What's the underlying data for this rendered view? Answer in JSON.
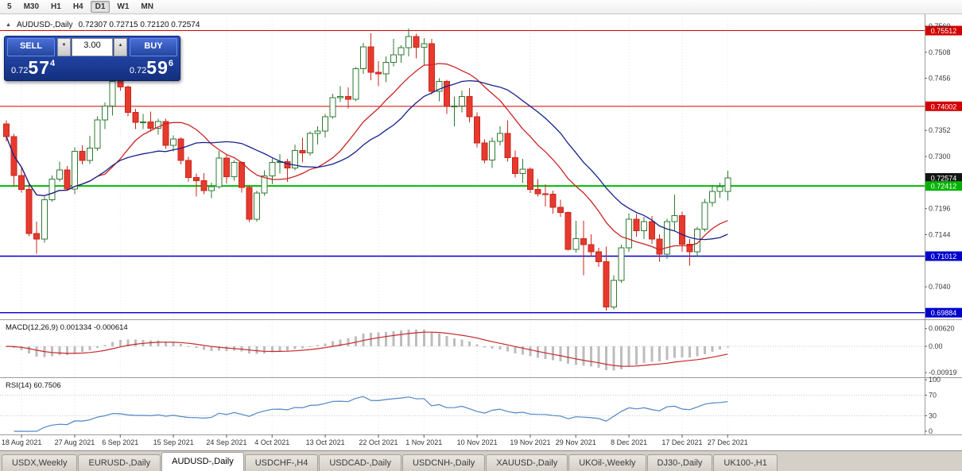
{
  "toolbar": {
    "timeframes": [
      {
        "label": "5",
        "active": false
      },
      {
        "label": "M30",
        "active": false
      },
      {
        "label": "H1",
        "active": false
      },
      {
        "label": "H4",
        "active": false
      },
      {
        "label": "D1",
        "active": true
      },
      {
        "label": "W1",
        "active": false
      },
      {
        "label": "MN",
        "active": false
      }
    ]
  },
  "chart_header": {
    "collapse_icon": "▲",
    "symbol_label": "AUDUSD-,Daily",
    "ohlc_label": "0.72307 0.72715 0.72120 0.72574"
  },
  "trade_panel": {
    "sell_label": "SELL",
    "buy_label": "BUY",
    "volume": "3.00",
    "spin_up": "▲",
    "spin_down": "▼",
    "bid": {
      "prefix": "0.72",
      "big": "57",
      "sup": "4"
    },
    "ask": {
      "prefix": "0.72",
      "big": "59",
      "sup": "6"
    }
  },
  "indicator_labels": {
    "macd": "MACD(12,26,9) 0.001334 -0.000614",
    "rsi": "RSI(14) 60.7506"
  },
  "tabs": [
    {
      "label": "USDX,Weekly",
      "active": false
    },
    {
      "label": "EURUSD-,Daily",
      "active": false
    },
    {
      "label": "AUDUSD-,Daily",
      "active": true
    },
    {
      "label": "USDCHF-,H4",
      "active": false
    },
    {
      "label": "USDCAD-,Daily",
      "active": false
    },
    {
      "label": "USDCNH-,Daily",
      "active": false
    },
    {
      "label": "XAUUSD-,Daily",
      "active": false
    },
    {
      "label": "UKOil-,Weekly",
      "active": false
    },
    {
      "label": "DJ30-,Daily",
      "active": false
    },
    {
      "label": "UK100-,H1",
      "active": false
    }
  ],
  "chart_data": {
    "type": "candlestick",
    "title": "AUDUSD-,Daily",
    "timeframe": "Daily",
    "x_labels": [
      {
        "text": "18 Aug 2021",
        "bar": 2
      },
      {
        "text": "27 Aug 2021",
        "bar": 9
      },
      {
        "text": "6 Sep 2021",
        "bar": 15
      },
      {
        "text": "15 Sep 2021",
        "bar": 22
      },
      {
        "text": "24 Sep 2021",
        "bar": 29
      },
      {
        "text": "4 Oct 2021",
        "bar": 35
      },
      {
        "text": "13 Oct 2021",
        "bar": 42
      },
      {
        "text": "22 Oct 2021",
        "bar": 49
      },
      {
        "text": "1 Nov 2021",
        "bar": 55
      },
      {
        "text": "10 Nov 2021",
        "bar": 62
      },
      {
        "text": "19 Nov 2021",
        "bar": 69
      },
      {
        "text": "29 Nov 2021",
        "bar": 75
      },
      {
        "text": "8 Dec 2021",
        "bar": 82
      },
      {
        "text": "17 Dec 2021",
        "bar": 89
      },
      {
        "text": "27 Dec 2021",
        "bar": 95
      }
    ],
    "candles": [
      [
        0.7365,
        0.7372,
        0.733,
        0.734
      ],
      [
        0.734,
        0.7345,
        0.7241,
        0.7262
      ],
      [
        0.7262,
        0.728,
        0.7228,
        0.7234
      ],
      [
        0.7234,
        0.7245,
        0.7141,
        0.7146
      ],
      [
        0.7146,
        0.717,
        0.7106,
        0.7135
      ],
      [
        0.7135,
        0.722,
        0.7128,
        0.7214
      ],
      [
        0.7214,
        0.7262,
        0.721,
        0.7255
      ],
      [
        0.7255,
        0.729,
        0.725,
        0.7273
      ],
      [
        0.7273,
        0.7281,
        0.7232,
        0.7235
      ],
      [
        0.7235,
        0.7318,
        0.7225,
        0.731
      ],
      [
        0.731,
        0.7322,
        0.7284,
        0.7292
      ],
      [
        0.7292,
        0.7341,
        0.7285,
        0.7317
      ],
      [
        0.7317,
        0.738,
        0.7311,
        0.7373
      ],
      [
        0.7373,
        0.7408,
        0.7355,
        0.7401
      ],
      [
        0.7401,
        0.7453,
        0.7382,
        0.745
      ],
      [
        0.745,
        0.7462,
        0.7432,
        0.7439
      ],
      [
        0.7439,
        0.7442,
        0.738,
        0.7388
      ],
      [
        0.7388,
        0.7395,
        0.7355,
        0.7368
      ],
      [
        0.7368,
        0.7385,
        0.7355,
        0.7369
      ],
      [
        0.7369,
        0.739,
        0.735,
        0.7356
      ],
      [
        0.7356,
        0.7375,
        0.7344,
        0.737
      ],
      [
        0.737,
        0.7375,
        0.7315,
        0.7322
      ],
      [
        0.7322,
        0.7342,
        0.731,
        0.7335
      ],
      [
        0.7335,
        0.7338,
        0.7284,
        0.7292
      ],
      [
        0.7292,
        0.7299,
        0.725,
        0.7258
      ],
      [
        0.7258,
        0.7266,
        0.722,
        0.7252
      ],
      [
        0.7252,
        0.7267,
        0.7225,
        0.7232
      ],
      [
        0.7232,
        0.7248,
        0.7217,
        0.724
      ],
      [
        0.724,
        0.7311,
        0.7236,
        0.7297
      ],
      [
        0.7297,
        0.7305,
        0.7246,
        0.726
      ],
      [
        0.726,
        0.7292,
        0.7252,
        0.7288
      ],
      [
        0.7288,
        0.729,
        0.7228,
        0.7238
      ],
      [
        0.7238,
        0.7242,
        0.7169,
        0.7175
      ],
      [
        0.7175,
        0.7232,
        0.717,
        0.7227
      ],
      [
        0.7227,
        0.7272,
        0.7222,
        0.7261
      ],
      [
        0.7261,
        0.7296,
        0.7245,
        0.7288
      ],
      [
        0.7288,
        0.7305,
        0.7266,
        0.729
      ],
      [
        0.729,
        0.7295,
        0.7249,
        0.7277
      ],
      [
        0.7277,
        0.7324,
        0.7272,
        0.7312
      ],
      [
        0.7312,
        0.7337,
        0.7288,
        0.7307
      ],
      [
        0.7307,
        0.735,
        0.7302,
        0.7346
      ],
      [
        0.7346,
        0.736,
        0.7324,
        0.7351
      ],
      [
        0.7351,
        0.7385,
        0.7338,
        0.7379
      ],
      [
        0.7379,
        0.7425,
        0.7375,
        0.7417
      ],
      [
        0.7417,
        0.744,
        0.7409,
        0.742
      ],
      [
        0.742,
        0.7438,
        0.7396,
        0.7414
      ],
      [
        0.7414,
        0.7478,
        0.741,
        0.7475
      ],
      [
        0.7475,
        0.7527,
        0.7465,
        0.7519
      ],
      [
        0.7519,
        0.7546,
        0.7452,
        0.7468
      ],
      [
        0.7468,
        0.749,
        0.744,
        0.7465
      ],
      [
        0.7465,
        0.75,
        0.7448,
        0.7488
      ],
      [
        0.7488,
        0.7535,
        0.748,
        0.7503
      ],
      [
        0.7503,
        0.7522,
        0.7487,
        0.7517
      ],
      [
        0.7517,
        0.7555,
        0.75,
        0.7539
      ],
      [
        0.7539,
        0.7545,
        0.7496,
        0.7518
      ],
      [
        0.7518,
        0.7536,
        0.7482,
        0.7525
      ],
      [
        0.7525,
        0.7535,
        0.7424,
        0.743
      ],
      [
        0.743,
        0.7456,
        0.741,
        0.745
      ],
      [
        0.745,
        0.7453,
        0.7385,
        0.74
      ],
      [
        0.74,
        0.742,
        0.736,
        0.7401
      ],
      [
        0.7401,
        0.7432,
        0.7388,
        0.742
      ],
      [
        0.742,
        0.7436,
        0.7368,
        0.7379
      ],
      [
        0.7379,
        0.7388,
        0.7318,
        0.7327
      ],
      [
        0.7327,
        0.7334,
        0.7287,
        0.7293
      ],
      [
        0.7293,
        0.7338,
        0.7277,
        0.733
      ],
      [
        0.733,
        0.736,
        0.7322,
        0.7346
      ],
      [
        0.7346,
        0.7372,
        0.729,
        0.7298
      ],
      [
        0.7298,
        0.7312,
        0.7258,
        0.7266
      ],
      [
        0.7266,
        0.7295,
        0.7248,
        0.7275
      ],
      [
        0.7275,
        0.7278,
        0.7227,
        0.7234
      ],
      [
        0.7234,
        0.7255,
        0.722,
        0.7226
      ],
      [
        0.7226,
        0.7245,
        0.72,
        0.7225
      ],
      [
        0.7225,
        0.7232,
        0.7186,
        0.7199
      ],
      [
        0.7199,
        0.7214,
        0.718,
        0.7188
      ],
      [
        0.7188,
        0.719,
        0.7112,
        0.7115
      ],
      [
        0.7115,
        0.7172,
        0.7108,
        0.7136
      ],
      [
        0.7136,
        0.7172,
        0.7063,
        0.7124
      ],
      [
        0.7124,
        0.7145,
        0.71,
        0.711
      ],
      [
        0.711,
        0.7118,
        0.708,
        0.709
      ],
      [
        0.709,
        0.712,
        0.6993,
        0.7
      ],
      [
        0.7,
        0.7063,
        0.6995,
        0.7053
      ],
      [
        0.7053,
        0.7124,
        0.7048,
        0.7118
      ],
      [
        0.7118,
        0.7187,
        0.711,
        0.7175
      ],
      [
        0.7175,
        0.7185,
        0.714,
        0.7152
      ],
      [
        0.7152,
        0.718,
        0.7135,
        0.717
      ],
      [
        0.717,
        0.7181,
        0.7126,
        0.7135
      ],
      [
        0.7135,
        0.7145,
        0.709,
        0.7105
      ],
      [
        0.7105,
        0.7176,
        0.7096,
        0.717
      ],
      [
        0.717,
        0.7224,
        0.7152,
        0.7182
      ],
      [
        0.7182,
        0.719,
        0.711,
        0.7125
      ],
      [
        0.7125,
        0.7135,
        0.7082,
        0.711
      ],
      [
        0.711,
        0.716,
        0.71,
        0.7155
      ],
      [
        0.7155,
        0.7215,
        0.715,
        0.7208
      ],
      [
        0.7208,
        0.7242,
        0.72,
        0.723
      ],
      [
        0.723,
        0.7248,
        0.7218,
        0.724
      ],
      [
        0.72307,
        0.72715,
        0.7212,
        0.72574
      ]
    ],
    "price_axis": {
      "range": {
        "top": 0.75774,
        "bottom": 0.69784
      },
      "ticks": [
        {
          "text": "0.7560",
          "value": 0.756
        },
        {
          "text": "0.7508",
          "value": 0.7508
        },
        {
          "text": "0.7456",
          "value": 0.7456
        },
        {
          "text": "0.7352",
          "value": 0.7352
        },
        {
          "text": "0.7300",
          "value": 0.73
        },
        {
          "text": "0.7196",
          "value": 0.7196
        },
        {
          "text": "0.7144",
          "value": 0.7144
        },
        {
          "text": "0.7040",
          "value": 0.704
        }
      ],
      "markers": [
        {
          "text": "0.75512",
          "value": 0.75512,
          "color": "#d40000"
        },
        {
          "text": "0.74002",
          "value": 0.74002,
          "color": "#d40000"
        },
        {
          "text": "0.72574",
          "value": 0.72574,
          "color": "#141414"
        },
        {
          "text": "0.72412",
          "value": 0.72412,
          "color": "#00b300"
        },
        {
          "text": "0.71012",
          "value": 0.71012,
          "color": "#0000cc"
        },
        {
          "text": "0.69884",
          "value": 0.69884,
          "color": "#0000cc"
        }
      ]
    },
    "hlines": [
      {
        "value": 0.75512,
        "color": "#d40000",
        "width": 1
      },
      {
        "value": 0.74002,
        "color": "#d40000",
        "width": 1
      },
      {
        "value": 0.72412,
        "color": "#00bb00",
        "width": 2
      },
      {
        "value": 0.71012,
        "color": "#0000cc",
        "width": 1.4
      },
      {
        "value": 0.69884,
        "color": "#0000cc",
        "width": 1.4
      }
    ],
    "moving_averages": [
      {
        "period": 13,
        "color": "#cc2222"
      },
      {
        "period": 21,
        "color": "#16228c"
      }
    ],
    "macd": {
      "fast": 12,
      "slow": 26,
      "signal": 9,
      "hist_color": "#bdbdbd",
      "signal_color": "#c62828",
      "axis": [
        {
          "text": "0.00620",
          "value": 0.0062
        },
        {
          "text": "0.00",
          "value": 0
        },
        {
          "text": "-0.00919",
          "value": -0.00919
        }
      ]
    },
    "rsi": {
      "period": 14,
      "color": "#4f86c6",
      "levels": [
        70,
        30
      ],
      "axis": [
        {
          "text": "100",
          "value": 100
        },
        {
          "text": "70",
          "value": 70
        },
        {
          "text": "30",
          "value": 30
        },
        {
          "text": "0",
          "value": 0
        }
      ]
    }
  }
}
